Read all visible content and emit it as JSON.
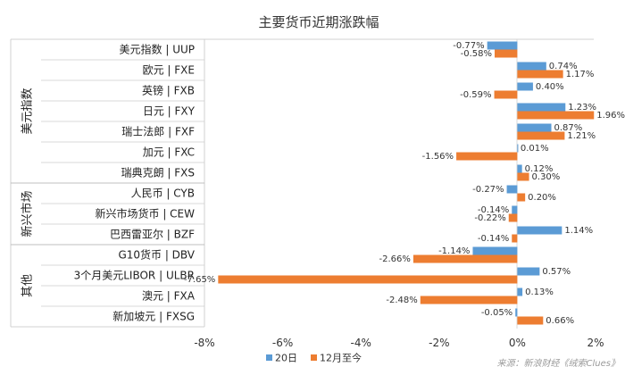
{
  "chart_data": {
    "type": "bar",
    "orientation": "horizontal",
    "title": "主要货币近期涨跌幅",
    "groups": [
      {
        "name": "美元指数",
        "categories": [
          "美元指数 | UUP",
          "欧元 | FXE",
          "英镑 | FXB",
          "日元 | FXY",
          "瑞士法郎 | FXF",
          "加元 | FXC",
          "瑞典克朗 | FXS"
        ]
      },
      {
        "name": "新兴市场",
        "categories": [
          "人民币 | CYB",
          "新兴市场货币 | CEW",
          "巴西雷亚尔 | BZF"
        ]
      },
      {
        "name": "其他",
        "categories": [
          "G10货币 | DBV",
          "3个月美元LIBOR | ULBR",
          "澳元 | FXA",
          "新加坡元 | FXSG"
        ]
      }
    ],
    "series": [
      {
        "name": "20日",
        "color": "#5B9BD5",
        "values": [
          -0.77,
          0.74,
          0.4,
          1.23,
          0.87,
          0.01,
          0.12,
          -0.27,
          -0.14,
          1.14,
          -1.14,
          0.57,
          0.13,
          -0.05
        ],
        "labels": [
          "-0.77%",
          "0.74%",
          "0.40%",
          "1.23%",
          "0.87%",
          "0.01%",
          "0.12%",
          "-0.27%",
          "-0.14%",
          "1.14%",
          "-1.14%",
          "0.57%",
          "0.13%",
          "-0.05%"
        ]
      },
      {
        "name": "12月至今",
        "color": "#ED7D31",
        "values": [
          -0.58,
          1.17,
          -0.59,
          1.96,
          1.21,
          -1.56,
          0.3,
          0.2,
          -0.22,
          -0.14,
          -2.66,
          -7.65,
          -2.48,
          0.66
        ],
        "labels": [
          "-0.58%",
          "1.17%",
          "-0.59%",
          "1.96%",
          "1.21%",
          "-1.56%",
          "0.30%",
          "0.20%",
          "-0.22%",
          "-0.14%",
          "-2.66%",
          "-7.65%",
          "-2.48%",
          "0.66%"
        ]
      }
    ],
    "xlim": [
      -8,
      2
    ],
    "xticks": [
      -8,
      -6,
      -4,
      -2,
      0,
      2
    ],
    "xtick_labels": [
      "-8%",
      "-6%",
      "-4%",
      "-2%",
      "0%",
      "2%"
    ],
    "legend_position": "bottom",
    "source": "来源：新浪财经《绒索Clues》"
  }
}
